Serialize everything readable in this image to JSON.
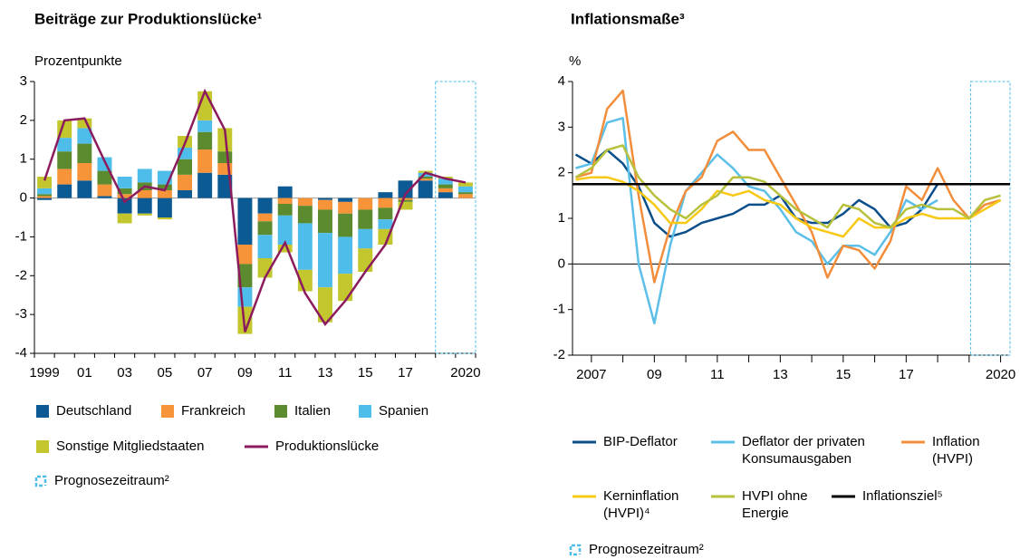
{
  "chart_data": [
    {
      "type": "bar",
      "stacked": true,
      "title": "Beiträge zur Produktionslücke¹",
      "y_label": "Prozentpunkte",
      "categories": [
        "1999",
        null,
        "01",
        null,
        "03",
        null,
        "05",
        null,
        "07",
        null,
        "09",
        null,
        "11",
        null,
        "13",
        null,
        "15",
        null,
        "17",
        null,
        null,
        "2020"
      ],
      "series": [
        {
          "name": "Deutschland",
          "color": "#0b5a94",
          "values": [
            -0.05,
            0.35,
            0.45,
            0.05,
            -0.4,
            -0.4,
            -0.5,
            0.2,
            0.65,
            0.6,
            -1.2,
            -0.4,
            0.3,
            0,
            -0.05,
            -0.1,
            0,
            0.15,
            0.45,
            0.45,
            0.15,
            0
          ]
        },
        {
          "name": "Frankreich",
          "color": "#f7943a",
          "values": [
            0.05,
            0.4,
            0.45,
            0.3,
            0.1,
            0.2,
            0.2,
            0.4,
            0.6,
            0.3,
            -0.5,
            -0.2,
            -0.15,
            -0.2,
            -0.25,
            -0.3,
            -0.3,
            -0.25,
            -0.05,
            0.05,
            0.1,
            0.1
          ]
        },
        {
          "name": "Italien",
          "color": "#5c8a2e",
          "values": [
            0.05,
            0.45,
            0.5,
            0.35,
            0.15,
            0.2,
            0.15,
            0.4,
            0.45,
            0.3,
            -0.6,
            -0.35,
            -0.3,
            -0.45,
            -0.6,
            -0.6,
            -0.5,
            -0.3,
            -0.05,
            0.05,
            0.1,
            0.05
          ]
        },
        {
          "name": "Spanien",
          "color": "#4fbde9",
          "values": [
            0.15,
            0.35,
            0.4,
            0.35,
            0.3,
            0.35,
            0.35,
            0.3,
            0.3,
            0,
            -0.5,
            -0.6,
            -0.75,
            -1.2,
            -1.4,
            -0.95,
            -0.5,
            -0.25,
            0,
            0.1,
            0.15,
            0.15
          ]
        },
        {
          "name": "Sonstige Mitgliedstaaten",
          "color": "#c3c62d",
          "values": [
            0.3,
            0.45,
            0.25,
            0,
            -0.25,
            -0.05,
            -0.05,
            0.3,
            0.75,
            0.6,
            -0.7,
            -0.5,
            -0.2,
            -0.55,
            -0.9,
            -0.7,
            -0.6,
            -0.4,
            -0.2,
            0.05,
            0.05,
            0.1
          ]
        }
      ],
      "line_series": {
        "name": "Produktionslücke",
        "color": "#8c1b5e",
        "values": [
          0.45,
          2.0,
          2.05,
          0.95,
          -0.1,
          0.3,
          0.2,
          1.4,
          2.75,
          1.75,
          -3.45,
          -2.05,
          -1.15,
          -2.45,
          -3.25,
          -2.65,
          -1.9,
          -1.2,
          0.1,
          0.65,
          0.5,
          0.4
        ]
      },
      "forecast": {
        "label": "Prognosezeitraum²",
        "from_index": 20,
        "color": "#4fbde9"
      },
      "ylim": [
        -4,
        3
      ],
      "yticks": [
        3,
        2,
        1,
        0,
        -1,
        -2,
        -3,
        -4
      ]
    },
    {
      "type": "line",
      "title": "Inflationsmaße³",
      "y_label": "%",
      "x": [
        2006.5,
        2007,
        2007.5,
        2008,
        2008.5,
        2009,
        2009.5,
        2010,
        2010.5,
        2011,
        2011.5,
        2012,
        2012.5,
        2013,
        2013.5,
        2014,
        2014.5,
        2015,
        2015.5,
        2016,
        2016.5,
        2017,
        2017.5,
        2018,
        2018.5,
        2019,
        2019.5,
        2020
      ],
      "series": [
        {
          "name": "BIP-Deflator",
          "color": "#0b4f8a",
          "values": [
            2.4,
            2.2,
            2.5,
            2.2,
            1.7,
            0.9,
            0.6,
            0.7,
            0.9,
            1.0,
            1.1,
            1.3,
            1.3,
            1.5,
            1.0,
            0.9,
            0.9,
            1.1,
            1.4,
            1.2,
            0.8,
            0.9,
            1.2,
            1.75,
            null,
            null,
            null,
            null
          ]
        },
        {
          "name": "Deflator der privaten Konsumausgaben",
          "color": "#5bbfe8",
          "values": [
            2.1,
            2.2,
            3.1,
            3.2,
            0.0,
            -1.3,
            0.4,
            1.6,
            2.0,
            2.4,
            2.1,
            1.7,
            1.6,
            1.2,
            0.7,
            0.5,
            0.0,
            0.4,
            0.4,
            0.2,
            0.7,
            1.4,
            1.2,
            1.4,
            null,
            null,
            null,
            null
          ]
        },
        {
          "name": "Inflation (HVPI)",
          "color": "#f28e3b",
          "values": [
            1.9,
            2.0,
            3.4,
            3.8,
            1.5,
            -0.4,
            0.8,
            1.6,
            1.9,
            2.7,
            2.9,
            2.5,
            2.5,
            1.9,
            1.3,
            0.7,
            -0.3,
            0.4,
            0.3,
            -0.1,
            0.5,
            1.7,
            1.4,
            2.1,
            1.4,
            1.0,
            1.3,
            1.4
          ]
        },
        {
          "name": "Kerninflation (HVPI)⁴",
          "color": "#f7c814",
          "values": [
            1.85,
            1.9,
            1.9,
            1.8,
            1.6,
            1.3,
            0.9,
            0.9,
            1.2,
            1.6,
            1.5,
            1.6,
            1.4,
            1.3,
            1.0,
            0.8,
            0.7,
            0.6,
            1.0,
            0.8,
            0.8,
            1.0,
            1.1,
            1.0,
            1.0,
            1.0,
            1.2,
            1.4
          ]
        },
        {
          "name": "HVPI ohne Energie",
          "color": "#b7c13b",
          "values": [
            1.9,
            2.1,
            2.5,
            2.6,
            1.9,
            1.5,
            1.2,
            1.0,
            1.3,
            1.5,
            1.9,
            1.9,
            1.8,
            1.5,
            1.2,
            1.0,
            0.8,
            1.3,
            1.2,
            0.9,
            0.8,
            1.2,
            1.3,
            1.2,
            1.2,
            1.0,
            1.4,
            1.5
          ]
        }
      ],
      "reference_line": {
        "name": "Inflationsziel⁵",
        "color": "#000000",
        "value": 1.75
      },
      "forecast": {
        "label": "Prognosezeitraum²",
        "from": 2019.05,
        "color": "#4fbde9"
      },
      "xlim": [
        2006.4,
        2020.3
      ],
      "xticks": [
        {
          "value": 2007,
          "label": "2007"
        },
        {
          "value": 2009,
          "label": "09"
        },
        {
          "value": 2011,
          "label": "11"
        },
        {
          "value": 2013,
          "label": "13"
        },
        {
          "value": 2015,
          "label": "15"
        },
        {
          "value": 2017,
          "label": "17"
        },
        {
          "value": 2020,
          "label": "2020"
        }
      ],
      "xminor": [
        2008,
        2010,
        2012,
        2014,
        2016,
        2018,
        2019
      ],
      "ylim": [
        -2,
        4
      ],
      "yticks": [
        4,
        3,
        2,
        1,
        0,
        -1,
        -2
      ]
    }
  ]
}
